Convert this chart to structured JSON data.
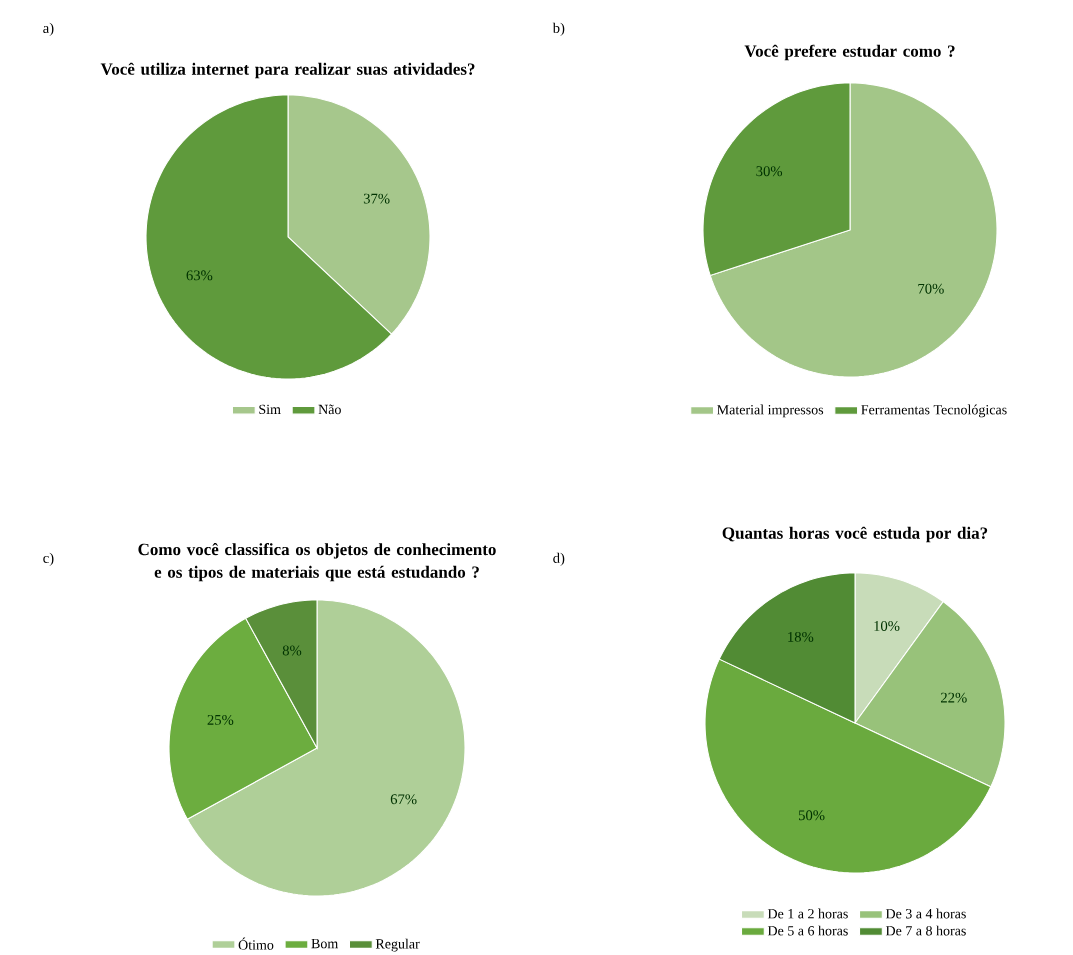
{
  "chart_data": [
    {
      "type": "pie",
      "title": "Você utiliza internet para realizar suas atividades?",
      "categories": [
        "Sim",
        "Não"
      ],
      "values": [
        37,
        63
      ],
      "value_labels": [
        "37%",
        "63%"
      ],
      "colors": [
        "#a6c78c",
        "#5f9a3c"
      ],
      "legend": "bottom",
      "annotations": [
        "a)"
      ]
    },
    {
      "type": "pie",
      "title": "Você prefere estudar como ?",
      "categories": [
        "Material impressos",
        "Ferramentas Tecnológicas"
      ],
      "values": [
        70,
        30
      ],
      "value_labels": [
        "70%",
        "30%"
      ],
      "colors": [
        "#a3c688",
        "#5f9a3c"
      ],
      "legend": "bottom",
      "annotations": [
        "b)"
      ]
    },
    {
      "type": "pie",
      "title": "Como você classifica os objetos de conhecimento e os tipos de materiais que está estudando ?",
      "categories": [
        "Ótimo",
        "Bom",
        "Regular"
      ],
      "values": [
        67,
        25,
        8
      ],
      "value_labels": [
        "67%",
        "25%",
        "8%"
      ],
      "colors": [
        "#afcf98",
        "#6cad3f",
        "#5a8f3a"
      ],
      "legend": "bottom",
      "annotations": [
        "c)"
      ]
    },
    {
      "type": "pie",
      "title": "Quantas horas você estuda por dia?",
      "categories": [
        "De 1 a 2 horas",
        "De 3 a 4 horas",
        "De 5 a 6 horas",
        "De 7 a 8 horas"
      ],
      "values": [
        10,
        22,
        50,
        18
      ],
      "value_labels": [
        "10%",
        "22%",
        "50%",
        "18%"
      ],
      "colors": [
        "#c8dcb9",
        "#98c27a",
        "#6aaa3e",
        "#518b34"
      ],
      "legend": "bottom",
      "annotations": [
        "d)"
      ]
    }
  ]
}
